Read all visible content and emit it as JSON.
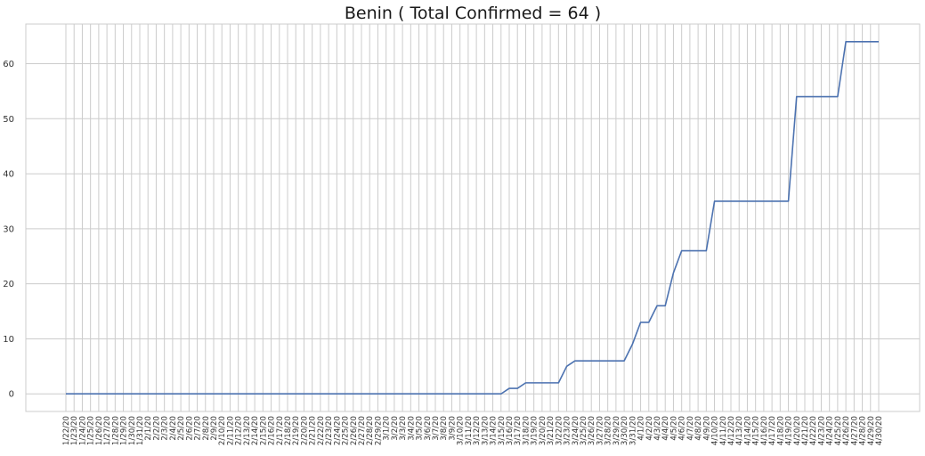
{
  "chart_data": {
    "type": "line",
    "title": "Benin ( Total Confirmed = 64 )",
    "xlabel": "",
    "ylabel": "",
    "ylim": [
      -3.2,
      67.2
    ],
    "yticks": [
      0,
      10,
      20,
      30,
      40,
      50,
      60
    ],
    "grid": true,
    "colors": {
      "line": "#4c72b0",
      "grid": "#cccccc",
      "frame": "#cccccc"
    },
    "x": [
      "1/22/20",
      "1/23/20",
      "1/24/20",
      "1/25/20",
      "1/26/20",
      "1/27/20",
      "1/28/20",
      "1/29/20",
      "1/30/20",
      "1/31/20",
      "2/1/20",
      "2/2/20",
      "2/3/20",
      "2/4/20",
      "2/5/20",
      "2/6/20",
      "2/7/20",
      "2/8/20",
      "2/9/20",
      "2/10/20",
      "2/11/20",
      "2/12/20",
      "2/13/20",
      "2/14/20",
      "2/15/20",
      "2/16/20",
      "2/17/20",
      "2/18/20",
      "2/19/20",
      "2/20/20",
      "2/21/20",
      "2/22/20",
      "2/23/20",
      "2/24/20",
      "2/25/20",
      "2/26/20",
      "2/27/20",
      "2/28/20",
      "2/29/20",
      "3/1/20",
      "3/2/20",
      "3/3/20",
      "3/4/20",
      "3/5/20",
      "3/6/20",
      "3/7/20",
      "3/8/20",
      "3/9/20",
      "3/10/20",
      "3/11/20",
      "3/12/20",
      "3/13/20",
      "3/14/20",
      "3/15/20",
      "3/16/20",
      "3/17/20",
      "3/18/20",
      "3/19/20",
      "3/20/20",
      "3/21/20",
      "3/22/20",
      "3/23/20",
      "3/24/20",
      "3/25/20",
      "3/26/20",
      "3/27/20",
      "3/28/20",
      "3/29/20",
      "3/30/20",
      "3/31/20",
      "4/1/20",
      "4/2/20",
      "4/3/20",
      "4/4/20",
      "4/5/20",
      "4/6/20",
      "4/7/20",
      "4/8/20",
      "4/9/20",
      "4/10/20",
      "4/11/20",
      "4/12/20",
      "4/13/20",
      "4/14/20",
      "4/15/20",
      "4/16/20",
      "4/17/20",
      "4/18/20",
      "4/19/20",
      "4/20/20",
      "4/21/20",
      "4/22/20",
      "4/23/20",
      "4/24/20",
      "4/25/20",
      "4/26/20",
      "4/27/20",
      "4/28/20",
      "4/29/20",
      "4/30/20"
    ],
    "series": [
      {
        "values": [
          0,
          0,
          0,
          0,
          0,
          0,
          0,
          0,
          0,
          0,
          0,
          0,
          0,
          0,
          0,
          0,
          0,
          0,
          0,
          0,
          0,
          0,
          0,
          0,
          0,
          0,
          0,
          0,
          0,
          0,
          0,
          0,
          0,
          0,
          0,
          0,
          0,
          0,
          0,
          0,
          0,
          0,
          0,
          0,
          0,
          0,
          0,
          0,
          0,
          0,
          0,
          0,
          0,
          0,
          1,
          1,
          2,
          2,
          2,
          2,
          2,
          5,
          6,
          6,
          6,
          6,
          6,
          6,
          6,
          9,
          13,
          13,
          16,
          16,
          22,
          26,
          26,
          26,
          26,
          35,
          35,
          35,
          35,
          35,
          35,
          35,
          35,
          35,
          35,
          54,
          54,
          54,
          54,
          54,
          54,
          64,
          64,
          64,
          64,
          64
        ]
      }
    ]
  }
}
